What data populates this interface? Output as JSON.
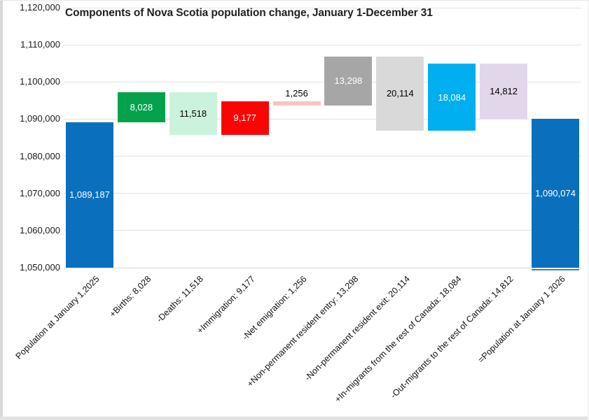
{
  "chart_data": {
    "type": "bar",
    "subtype": "waterfall",
    "title": "Components of Nova Scotia population change, January 1-December 31",
    "ylim": [
      1050000,
      1120000
    ],
    "ytick_step": 10000,
    "yticks": [
      "1,120,000",
      "1,110,000",
      "1,100,000",
      "1,090,000",
      "1,080,000",
      "1,070,000",
      "1,060,000",
      "1,050,000"
    ],
    "grid": true,
    "legend": false,
    "style": {
      "gridline_color": "#e3e3e3",
      "axis_color": "#d6d6d6",
      "title_color": "#1f1f1f",
      "tick_color": "#1a1a1a"
    },
    "bars": [
      {
        "label": "Population at January 1,2025",
        "kind": "total",
        "value": 1089187,
        "display": "1,089,187",
        "color": "#0a70be",
        "text_color": "#ffffff",
        "label_pos": "inside"
      },
      {
        "label": "+Births: 8,028",
        "kind": "increase",
        "value": 8028,
        "display": "8,028",
        "color": "#04a24d",
        "text_color": "#ffffff",
        "label_pos": "inside"
      },
      {
        "label": "-Deaths: 11,518",
        "kind": "decrease",
        "value": 11518,
        "display": "11,518",
        "color": "#cbf2dc",
        "text_color": "#000000",
        "label_pos": "inside"
      },
      {
        "label": "+Immigration: 9,177",
        "kind": "increase",
        "value": 9177,
        "display": "9,177",
        "color": "#fa0505",
        "text_color": "#ffffff",
        "label_pos": "inside"
      },
      {
        "label": "-Net emigration: 1,256",
        "kind": "decrease",
        "value": 1256,
        "display": "1,256",
        "color": "#f9c2c4",
        "text_color": "#000000",
        "label_pos": "above"
      },
      {
        "label": "+Non-permanent resident entry: 13,298",
        "kind": "increase",
        "value": 13298,
        "display": "13,298",
        "color": "#a6a6a6",
        "text_color": "#ffffff",
        "label_pos": "inside"
      },
      {
        "label": "-Non-permanent resident exit: 20,114",
        "kind": "decrease",
        "value": 20114,
        "display": "20,114",
        "color": "#d9d9d9",
        "text_color": "#000000",
        "label_pos": "inside"
      },
      {
        "label": "+In-migrants from the rest of Canada: 18,084",
        "kind": "increase",
        "value": 18084,
        "display": "18,084",
        "color": "#00afef",
        "text_color": "#ffffff",
        "label_pos": "inside"
      },
      {
        "label": "-Out-migrants to the rest of Canada: 14,812",
        "kind": "decrease",
        "value": 14812,
        "display": "14,812",
        "color": "#e2d6eb",
        "text_color": "#000000",
        "label_pos": "inside"
      },
      {
        "label": "=Population at January 1 2026",
        "kind": "total",
        "value": 1090074,
        "display": "1,090,074",
        "color": "#0a70be",
        "text_color": "#ffffff",
        "label_pos": "inside",
        "underline": true
      }
    ]
  }
}
